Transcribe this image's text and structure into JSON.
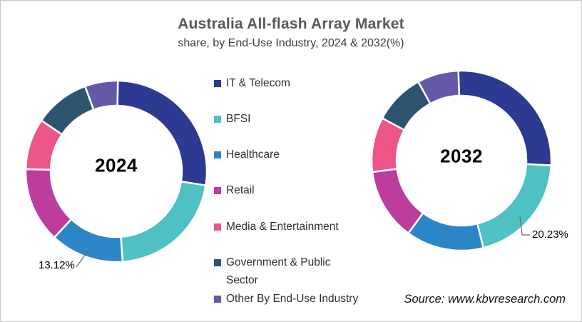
{
  "title": "Australia All-flash Array Market",
  "subtitle": "share, by End-Use Industry, 2024 & 2032(%)",
  "source": "Source: www.kbvresearch.com",
  "legend": {
    "items": [
      {
        "label": "IT & Telecom",
        "color": "#2c3a92"
      },
      {
        "label": "BFSI",
        "color": "#4fc0c4"
      },
      {
        "label": "Healthcare",
        "color": "#2c85c7"
      },
      {
        "label": "Retail",
        "color": "#bc3d9e"
      },
      {
        "label": "Media & Entertainment",
        "color": "#ee5587"
      },
      {
        "label": "Government & Public Sector",
        "color": "#2f5470"
      },
      {
        "label": "Other By End-Use Industry",
        "color": "#6459a8"
      }
    ]
  },
  "chart_data": [
    {
      "type": "pie",
      "subtype": "donut",
      "year_label": "2024",
      "categories": [
        "IT & Telecom",
        "BFSI",
        "Healthcare",
        "Retail",
        "Media & Entertainment",
        "Government & Public Sector",
        "Other By End-Use Industry"
      ],
      "values": [
        27.2,
        21.4,
        13.12,
        13.4,
        9.1,
        9.9,
        5.88
      ],
      "values_note": "Healthcare = 13.12% labeled on chart; other shares estimated from arc angles",
      "colors": [
        "#2c3a92",
        "#4fc0c4",
        "#2c85c7",
        "#bc3d9e",
        "#ee5587",
        "#2f5470",
        "#6459a8"
      ],
      "annotation": {
        "text": "13.12%",
        "category": "Healthcare"
      },
      "start_angle_deg": 1,
      "legend_position": "center-column"
    },
    {
      "type": "pie",
      "subtype": "donut",
      "year_label": "2032",
      "categories": [
        "IT & Telecom",
        "BFSI",
        "Healthcare",
        "Retail",
        "Media & Entertainment",
        "Government & Public Sector",
        "Other By End-Use Industry"
      ],
      "values": [
        26.4,
        20.23,
        14.0,
        12.9,
        9.85,
        9.2,
        7.42
      ],
      "values_note": "BFSI = 20.23% labeled on chart; other shares estimated from arc angles",
      "colors": [
        "#2c3a92",
        "#4fc0c4",
        "#2c85c7",
        "#bc3d9e",
        "#ee5587",
        "#2f5470",
        "#6459a8"
      ],
      "annotation": {
        "text": "20.23%",
        "category": "BFSI"
      },
      "start_angle_deg": -2,
      "legend_position": "center-column"
    }
  ]
}
